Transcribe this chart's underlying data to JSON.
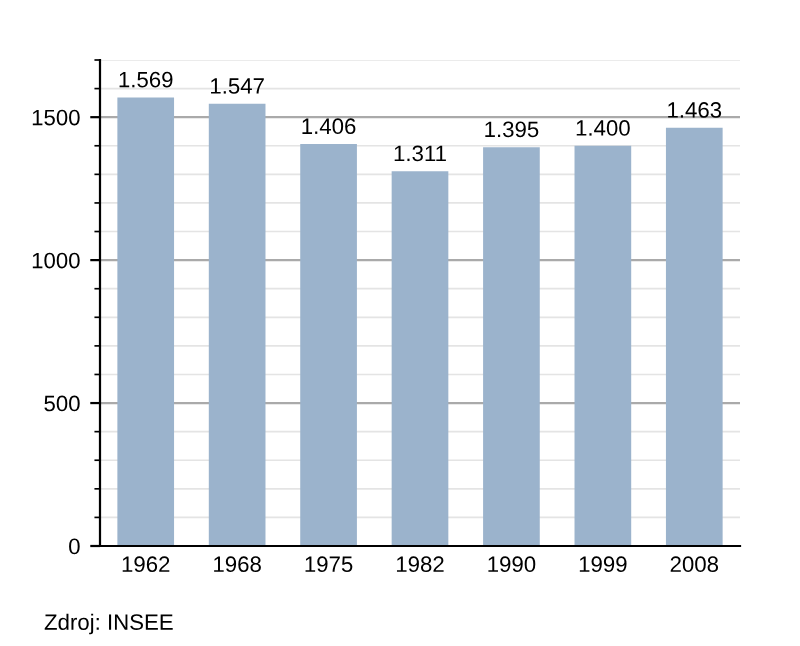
{
  "chart_data": {
    "type": "bar",
    "categories": [
      "1962",
      "1968",
      "1975",
      "1982",
      "1990",
      "1999",
      "2008"
    ],
    "values": [
      1569,
      1547,
      1406,
      1311,
      1395,
      1400,
      1463
    ],
    "value_labels": [
      "1.569",
      "1.547",
      "1.406",
      "1.311",
      "1.395",
      "1.400",
      "1.463"
    ],
    "color": "#9bb3cc",
    "ylim": [
      0,
      1700
    ],
    "yticks": [
      0,
      500,
      1000,
      1500
    ],
    "grid": "y",
    "annotations": [
      "Zdroj: INSEE"
    ]
  }
}
